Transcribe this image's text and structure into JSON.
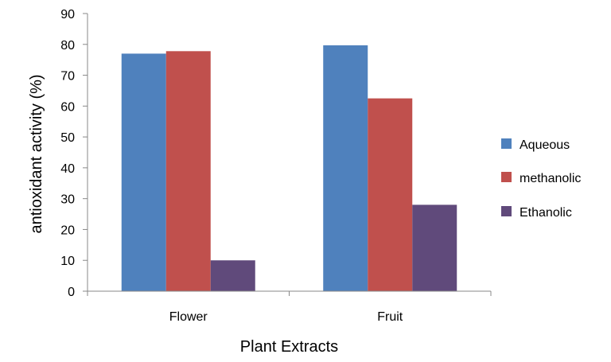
{
  "chart_data": {
    "type": "bar",
    "title": "",
    "xlabel": "Plant Extracts",
    "ylabel": "antioxidant activity (%)",
    "ylim": [
      0,
      90
    ],
    "yticks": [
      "0",
      "10",
      "20",
      "30",
      "40",
      "50",
      "60",
      "70",
      "80",
      "90"
    ],
    "categories": [
      "Flower",
      "Fruit"
    ],
    "series": [
      {
        "name": "Aqueous",
        "color": "#4f81bd",
        "values": [
          77,
          79.7
        ]
      },
      {
        "name": "methanolic",
        "color": "#c0504d",
        "values": [
          77.8,
          62.5
        ]
      },
      {
        "name": "Ethanolic",
        "color": "#604a7b",
        "values": [
          10,
          28
        ]
      }
    ],
    "grid": false,
    "legend_position": "right"
  }
}
